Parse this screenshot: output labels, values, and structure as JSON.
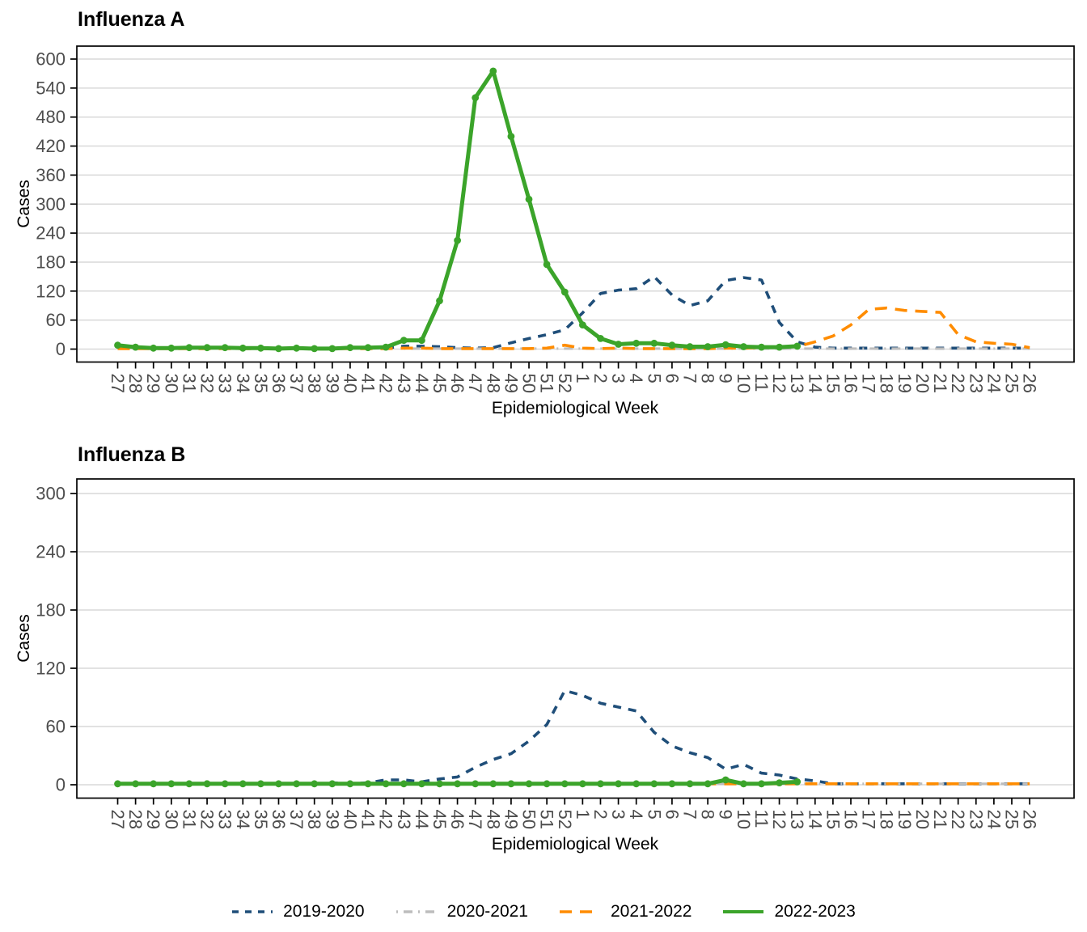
{
  "chart_data": [
    {
      "type": "line",
      "title": "Influenza A",
      "xlabel": "Epidemiological Week",
      "ylabel": "Cases",
      "ylim": [
        0,
        600
      ],
      "yticks": [
        0,
        60,
        120,
        180,
        240,
        300,
        360,
        420,
        480,
        540,
        600
      ],
      "grid": "horizontal-only",
      "categories": [
        "27",
        "28",
        "29",
        "30",
        "31",
        "32",
        "33",
        "34",
        "35",
        "36",
        "37",
        "38",
        "39",
        "40",
        "41",
        "42",
        "43",
        "44",
        "45",
        "46",
        "47",
        "48",
        "49",
        "50",
        "51",
        "52",
        "1",
        "2",
        "3",
        "4",
        "5",
        "6",
        "7",
        "8",
        "9",
        "10",
        "11",
        "12",
        "13",
        "14",
        "15",
        "16",
        "17",
        "18",
        "19",
        "20",
        "21",
        "22",
        "23",
        "24",
        "25",
        "26"
      ],
      "series": [
        {
          "name": "2019-2020",
          "color": "#1F4E79",
          "dash": "10 9",
          "marker": false,
          "values": [
            null,
            null,
            null,
            null,
            null,
            null,
            null,
            null,
            null,
            null,
            null,
            null,
            null,
            null,
            null,
            2,
            6,
            6,
            5,
            3,
            2,
            3,
            13,
            22,
            30,
            40,
            75,
            115,
            122,
            125,
            150,
            112,
            90,
            100,
            142,
            148,
            143,
            55,
            15,
            4,
            2,
            2,
            2,
            2,
            2,
            2,
            2,
            2,
            2,
            2,
            2,
            2
          ]
        },
        {
          "name": "2020-2021",
          "color": "#BDBDBD",
          "dash": "2 7 11 7",
          "marker": false,
          "values": [
            null,
            null,
            null,
            null,
            null,
            null,
            null,
            null,
            null,
            null,
            null,
            null,
            null,
            null,
            null,
            null,
            1,
            1,
            1,
            1,
            1,
            1,
            1,
            1,
            1,
            1,
            1,
            1,
            1,
            1,
            1,
            1,
            1,
            1,
            1,
            1,
            1,
            1,
            1,
            1,
            1,
            1,
            1,
            1,
            1,
            1,
            1,
            1,
            1,
            1,
            1,
            1
          ]
        },
        {
          "name": "2021-2022",
          "color": "#FF8C00",
          "dash": "15 10",
          "marker": false,
          "values": [
            1,
            1,
            1,
            1,
            1,
            1,
            1,
            1,
            1,
            1,
            1,
            1,
            1,
            1,
            1,
            1,
            2,
            2,
            1,
            1,
            1,
            1,
            1,
            1,
            2,
            8,
            2,
            1,
            2,
            1,
            1,
            1,
            1,
            1,
            2,
            2,
            3,
            5,
            5,
            15,
            27,
            50,
            82,
            85,
            80,
            78,
            76,
            30,
            15,
            12,
            10,
            3
          ]
        },
        {
          "name": "2022-2023",
          "color": "#3BA42A",
          "dash": "",
          "marker": true,
          "values": [
            8,
            4,
            2,
            2,
            3,
            3,
            3,
            2,
            2,
            1,
            2,
            1,
            1,
            3,
            3,
            4,
            18,
            18,
            100,
            225,
            520,
            575,
            440,
            310,
            175,
            118,
            50,
            22,
            10,
            12,
            12,
            8,
            5,
            5,
            9,
            5,
            4,
            4,
            6,
            null,
            null,
            null,
            null,
            null,
            null,
            null,
            null,
            null,
            null,
            null,
            null,
            null
          ]
        }
      ]
    },
    {
      "type": "line",
      "title": "Influenza B",
      "xlabel": "Epidemiological Week",
      "ylabel": "Cases",
      "ylim": [
        0,
        300
      ],
      "yticks": [
        0,
        60,
        120,
        180,
        240,
        300
      ],
      "grid": "horizontal-only",
      "categories": [
        "27",
        "28",
        "29",
        "30",
        "31",
        "32",
        "33",
        "34",
        "35",
        "36",
        "37",
        "38",
        "39",
        "40",
        "41",
        "42",
        "43",
        "44",
        "45",
        "46",
        "47",
        "48",
        "49",
        "50",
        "51",
        "52",
        "1",
        "2",
        "3",
        "4",
        "5",
        "6",
        "7",
        "8",
        "9",
        "10",
        "11",
        "12",
        "13",
        "14",
        "15",
        "16",
        "17",
        "18",
        "19",
        "20",
        "21",
        "22",
        "23",
        "24",
        "25",
        "26"
      ],
      "series": [
        {
          "name": "2019-2020",
          "color": "#1F4E79",
          "dash": "10 9",
          "marker": false,
          "values": [
            null,
            null,
            null,
            null,
            null,
            null,
            null,
            null,
            null,
            null,
            null,
            1,
            2,
            1,
            2,
            5,
            5,
            3,
            6,
            8,
            18,
            26,
            32,
            45,
            62,
            97,
            92,
            84,
            80,
            76,
            54,
            40,
            33,
            28,
            16,
            21,
            12,
            10,
            6,
            4,
            1,
            1,
            1,
            1,
            1,
            1,
            1,
            1,
            1,
            1,
            1,
            1
          ]
        },
        {
          "name": "2020-2021",
          "color": "#BDBDBD",
          "dash": "2 7 11 7",
          "marker": false,
          "values": [
            null,
            null,
            null,
            null,
            null,
            null,
            null,
            null,
            null,
            null,
            null,
            null,
            null,
            null,
            null,
            null,
            1,
            1,
            1,
            1,
            1,
            1,
            1,
            1,
            1,
            1,
            1,
            1,
            1,
            1,
            1,
            1,
            1,
            1,
            1,
            1,
            1,
            1,
            1,
            1,
            1,
            1,
            1,
            1,
            1,
            1,
            1,
            1,
            1,
            1,
            1,
            1
          ]
        },
        {
          "name": "2021-2022",
          "color": "#FF8C00",
          "dash": "15 10",
          "marker": false,
          "values": [
            1,
            1,
            1,
            1,
            1,
            1,
            1,
            1,
            1,
            1,
            1,
            1,
            1,
            1,
            1,
            1,
            1,
            1,
            1,
            1,
            1,
            1,
            1,
            1,
            1,
            1,
            1,
            1,
            1,
            1,
            1,
            1,
            1,
            1,
            1,
            1,
            1,
            1,
            1,
            1,
            1,
            1,
            1,
            1,
            1,
            1,
            1,
            1,
            1,
            1,
            1,
            1
          ]
        },
        {
          "name": "2022-2023",
          "color": "#3BA42A",
          "dash": "",
          "marker": true,
          "values": [
            1,
            1,
            1,
            1,
            1,
            1,
            1,
            1,
            1,
            1,
            1,
            1,
            1,
            1,
            1,
            1,
            1,
            1,
            1,
            1,
            1,
            1,
            1,
            1,
            1,
            1,
            1,
            1,
            1,
            1,
            1,
            1,
            1,
            1,
            5,
            1,
            1,
            2,
            3,
            null,
            null,
            null,
            null,
            null,
            null,
            null,
            null,
            null,
            null,
            null,
            null,
            null
          ]
        }
      ]
    }
  ],
  "legend": {
    "items": [
      {
        "label": "2019-2020"
      },
      {
        "label": "2020-2021"
      },
      {
        "label": "2021-2022"
      },
      {
        "label": "2022-2023"
      }
    ]
  },
  "style": {
    "grid_color": "#D9D9D9",
    "axis_color": "#000000",
    "tick_label_color": "#4d4d4d"
  }
}
